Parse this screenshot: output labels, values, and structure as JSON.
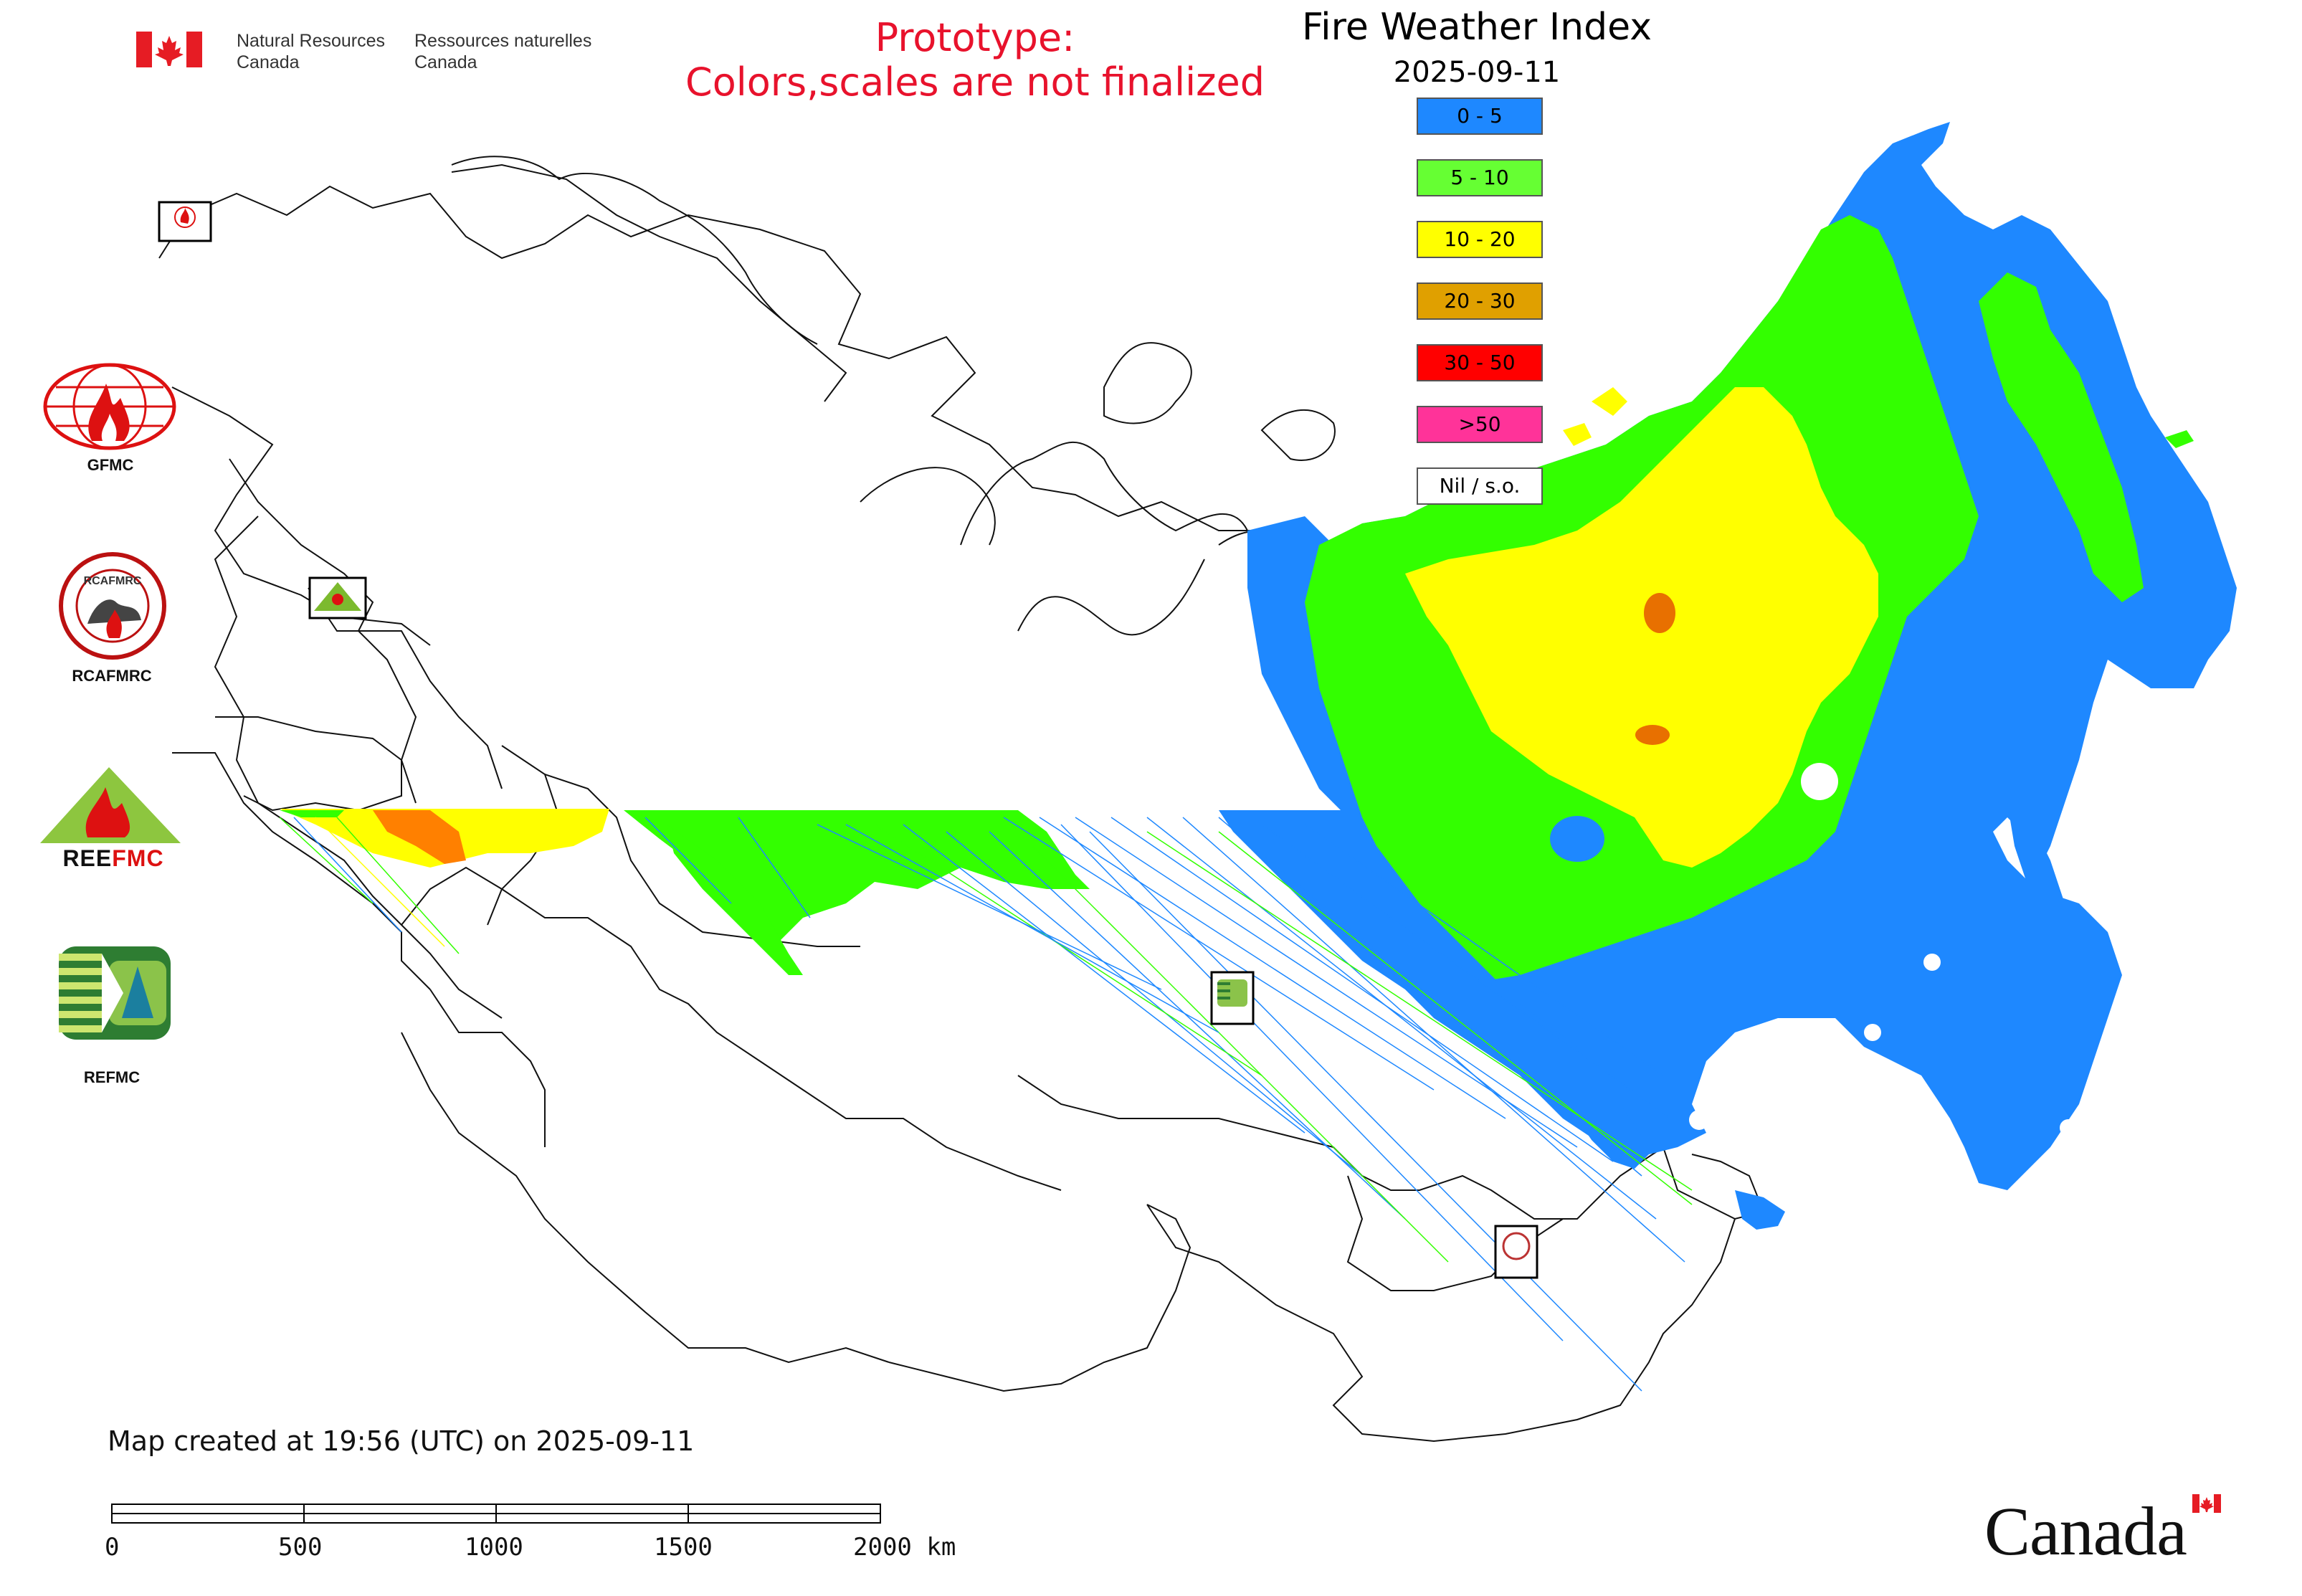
{
  "header": {
    "org_en_line1": "Natural Resources",
    "org_en_line2": "Canada",
    "org_fr_line1": "Ressources naturelles",
    "org_fr_line2": "Canada",
    "prototype_line1": "Prototype:",
    "prototype_line2": "Colors,scales are not finalized"
  },
  "legend": {
    "title": "Fire Weather Index",
    "date": "2025-09-11",
    "items": [
      {
        "label": "0 - 5",
        "color": "#1e88ff"
      },
      {
        "label": "5 - 10",
        "color": "#66ff33"
      },
      {
        "label": "10 - 20",
        "color": "#ffff00"
      },
      {
        "label": "20 - 30",
        "color": "#e0a000"
      },
      {
        "label": "30 - 50",
        "color": "#ff0000"
      },
      {
        "label": ">50",
        "color": "#ff3399"
      },
      {
        "label": "Nil / s.o.",
        "color": "#ffffff"
      }
    ]
  },
  "logos": [
    {
      "label": "GFMC",
      "icon": "gfmc-logo-icon"
    },
    {
      "label": "RCAFMRC",
      "icon": "rcafmrc-logo-icon"
    },
    {
      "label": "",
      "icon": "reefmc-logo-icon"
    },
    {
      "label": "REFMC",
      "icon": "refmc-logo-icon"
    }
  ],
  "footer": {
    "created": "Map created at 19:56 (UTC) on 2025-09-11",
    "scale_labels": [
      "0",
      "500",
      "1000",
      "1500",
      "2000 km"
    ],
    "wordmark": "Canada"
  },
  "colors": {
    "fwi_0_5": "#1e88ff",
    "fwi_5_10": "#66ff33",
    "fwi_10_20": "#ffff00",
    "fwi_20_30": "#e0a000",
    "fwi_30_50": "#ff0000",
    "fwi_gt50": "#ff3399",
    "prototype_text": "#e8122c"
  }
}
